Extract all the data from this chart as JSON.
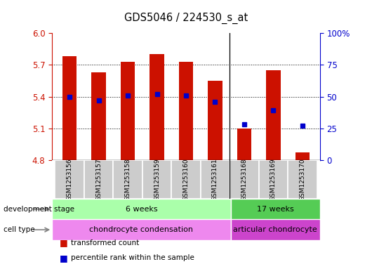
{
  "title": "GDS5046 / 224530_s_at",
  "samples": [
    "GSM1253156",
    "GSM1253157",
    "GSM1253158",
    "GSM1253159",
    "GSM1253160",
    "GSM1253161",
    "GSM1253168",
    "GSM1253169",
    "GSM1253170"
  ],
  "bar_values": [
    5.78,
    5.63,
    5.73,
    5.8,
    5.73,
    5.55,
    5.1,
    5.65,
    4.87
  ],
  "bar_base": 4.8,
  "dot_percentiles": [
    50,
    47,
    51,
    52,
    51,
    46,
    28,
    39,
    27
  ],
  "ylim_left": [
    4.8,
    6.0
  ],
  "ylim_right": [
    0,
    100
  ],
  "yticks_left": [
    4.8,
    5.1,
    5.4,
    5.7,
    6.0
  ],
  "yticks_right": [
    0,
    25,
    50,
    75,
    100
  ],
  "bar_color": "#cc1100",
  "dot_color": "#0000cc",
  "grid_ticks": [
    5.1,
    5.4,
    5.7
  ],
  "development_stage_groups": [
    {
      "label": "6 weeks",
      "start": 0,
      "end": 6,
      "color": "#aaffaa"
    },
    {
      "label": "17 weeks",
      "start": 6,
      "end": 9,
      "color": "#55cc55"
    }
  ],
  "cell_type_groups": [
    {
      "label": "chondrocyte condensation",
      "start": 0,
      "end": 6,
      "color": "#ee88ee"
    },
    {
      "label": "articular chondrocyte",
      "start": 6,
      "end": 9,
      "color": "#cc44cc"
    }
  ],
  "legend_items": [
    {
      "color": "#cc1100",
      "label": "transformed count"
    },
    {
      "color": "#0000cc",
      "label": "percentile rank within the sample"
    }
  ],
  "dev_stage_label": "development stage",
  "cell_type_label": "cell type",
  "background_color": "#ffffff",
  "bar_width": 0.5,
  "separator_col": 6,
  "sample_box_color": "#cccccc"
}
